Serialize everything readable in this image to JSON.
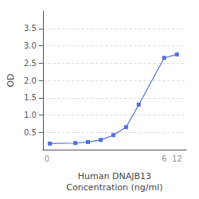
{
  "chart_data": {
    "type": "line",
    "x": [
      0.0117,
      0.047,
      0.094,
      0.188,
      0.375,
      0.75,
      1.5,
      6,
      12
    ],
    "values": [
      0.175,
      0.19,
      0.22,
      0.28,
      0.42,
      0.65,
      1.3,
      2.65,
      2.75
    ],
    "xlabel": "Human DNAJB13\nConcentration (ng/ml)",
    "ylabel": "OD",
    "log": "x",
    "xlim": [
      0.008,
      20
    ],
    "xticks": [
      {
        "value": 0.01,
        "label": "0"
      },
      6,
      12
    ],
    "ylim": [
      0.0,
      4.0
    ],
    "yticks": [
      0.5,
      {
        "value": 1.0,
        "label": "1.0"
      },
      1.5,
      {
        "value": 2.0,
        "label": "2.0"
      },
      2.5,
      {
        "value": 3.0,
        "label": "3.0"
      },
      3.5
    ],
    "grid": true,
    "marker": "square"
  }
}
